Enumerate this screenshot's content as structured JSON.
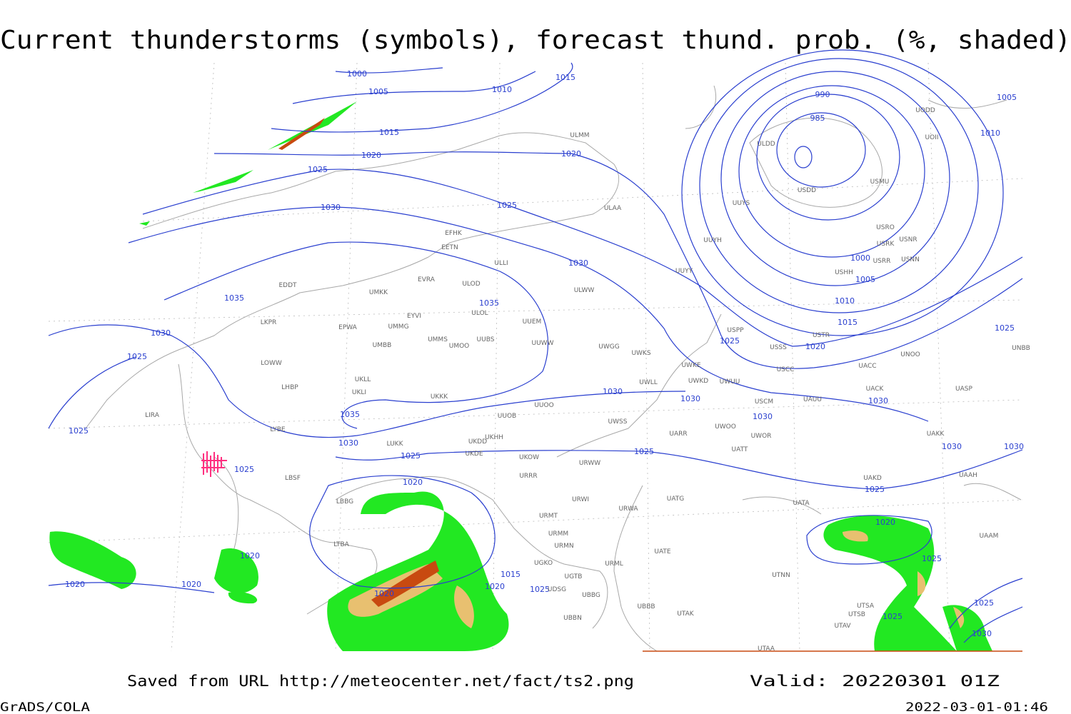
{
  "title": "Current thunderstorms (symbols), forecast thund. prob. (%, shaded)",
  "footer": {
    "saved": "Saved from URL http://meteocenter.net/fact/ts2.png",
    "valid": "Valid: 20220301 01Z",
    "credit": "GrADS/COLA",
    "timestamp": "2022-03-01-01:46"
  },
  "isobar_labels": [
    1000,
    1005,
    1010,
    1015,
    1015,
    1020,
    1020,
    1025,
    1025,
    1030,
    1030,
    1035,
    1035,
    1030,
    1025,
    1025,
    1035,
    1030,
    1025,
    1025,
    1020,
    1020,
    1020,
    1020,
    1020,
    1015,
    1020,
    1025,
    1025,
    1030,
    1030,
    1030,
    1030,
    1030,
    1030,
    1025,
    1025,
    1020,
    1015,
    1010,
    1005,
    1000,
    990,
    985,
    1005,
    1010,
    1025,
    1020,
    1025,
    1025,
    1025,
    1030
  ],
  "stations": [
    "ULMM",
    "ULAA",
    "ULLI",
    "EFHK",
    "EETN",
    "EVRA",
    "ULOD",
    "ULOL",
    "UMKK",
    "EYVI",
    "UMMG",
    "EPWA",
    "EDDT",
    "LKPR",
    "UMBB",
    "UMMS",
    "UMOO",
    "UUBS",
    "UUEM",
    "UUWW",
    "UUYY",
    "ULWW",
    "UWGG",
    "UWKS",
    "UWKE",
    "UWKD",
    "UWUU",
    "UWLL",
    "USPP",
    "USSS",
    "USCC",
    "USCM",
    "UAUU",
    "UWOO",
    "UWOR",
    "UATT",
    "UARR",
    "UWSS",
    "URWW",
    "URWA",
    "UATG",
    "UATA",
    "UATE",
    "UUOB",
    "UUOO",
    "UKKK",
    "UKHH",
    "UKDD",
    "UKDE",
    "UKOW",
    "URRR",
    "URWI",
    "URMT",
    "URMM",
    "URMN",
    "UGKO",
    "UGTB",
    "UDSG",
    "UBBG",
    "UBBN",
    "UBBB",
    "UTAK",
    "UTAA",
    "UTNN",
    "UTSA",
    "UTSB",
    "UTAV",
    "URML",
    "LUKK",
    "UKLL",
    "UKLI",
    "LHBP",
    "LOWW",
    "LYBE",
    "LBSF",
    "LIRA",
    "LTBA",
    "LBBG",
    "ULDD",
    "USDD",
    "USMU",
    "UUYS",
    "UUYH",
    "USRO",
    "USRK",
    "USNR",
    "USRR",
    "USNN",
    "USHH",
    "USTR",
    "UNOO",
    "UACC",
    "UACK",
    "UASP",
    "UAKK",
    "UAAH",
    "UAKD",
    "UAAM",
    "UNBB",
    "UODD",
    "UOII"
  ]
}
